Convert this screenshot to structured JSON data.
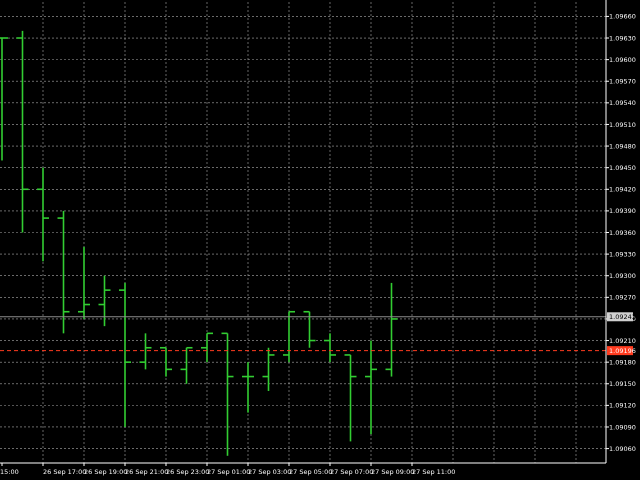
{
  "chart_data": {
    "type": "ohlc",
    "timeframe": "H1",
    "colors": {
      "background": "#000000",
      "grid": "#a9a9a9",
      "bars": "#32cd32",
      "axis": "#ffffff",
      "bid_line": "#8c8c8c",
      "bid_tag_bg": "#d0d0d0",
      "stop_line": "#ff3b1f",
      "stop_tag_bg": "#ff3b1f"
    },
    "y_range": [
      1.0904,
      1.0968
    ],
    "y_ticks": [
      "1.09660",
      "1.09630",
      "1.09600",
      "1.09570",
      "1.09540",
      "1.09510",
      "1.09480",
      "1.09450",
      "1.09420",
      "1.09390",
      "1.09360",
      "1.09330",
      "1.09300",
      "1.09270",
      "1.09240",
      "1.09210",
      "1.09180",
      "1.09150",
      "1.09120",
      "1.09090",
      "1.09060"
    ],
    "x_ticks": [
      "15:00",
      "26 Sep 17:00",
      "26 Sep 19:00",
      "26 Sep 21:00",
      "26 Sep 23:00",
      "27 Sep 01:00",
      "27 Sep 03:00",
      "27 Sep 05:00",
      "27 Sep 07:00",
      "27 Sep 09:00",
      "27 Sep 11:00"
    ],
    "bars": [
      {
        "time": "26 Sep 15:00",
        "open": 1.0963,
        "high": 1.0963,
        "low": 1.0946,
        "close": 1.0963
      },
      {
        "time": "26 Sep 16:00",
        "open": 1.0963,
        "high": 1.0964,
        "low": 1.0936,
        "close": 1.0942
      },
      {
        "time": "26 Sep 17:00",
        "open": 1.0942,
        "high": 1.0945,
        "low": 1.0932,
        "close": 1.0938
      },
      {
        "time": "26 Sep 18:00",
        "open": 1.0938,
        "high": 1.0939,
        "low": 1.0922,
        "close": 1.0925
      },
      {
        "time": "26 Sep 19:00",
        "open": 1.0925,
        "high": 1.0934,
        "low": 1.0924,
        "close": 1.0926
      },
      {
        "time": "26 Sep 20:00",
        "open": 1.0926,
        "high": 1.093,
        "low": 1.0923,
        "close": 1.0928
      },
      {
        "time": "26 Sep 21:00",
        "open": 1.0928,
        "high": 1.0929,
        "low": 1.0909,
        "close": 1.0918
      },
      {
        "time": "26 Sep 22:00",
        "open": 1.0918,
        "high": 1.0922,
        "low": 1.0917,
        "close": 1.092
      },
      {
        "time": "26 Sep 23:00",
        "open": 1.092,
        "high": 1.092,
        "low": 1.0916,
        "close": 1.0917
      },
      {
        "time": "27 Sep 00:00",
        "open": 1.0917,
        "high": 1.092,
        "low": 1.0915,
        "close": 1.092
      },
      {
        "time": "27 Sep 01:00",
        "open": 1.092,
        "high": 1.0922,
        "low": 1.0918,
        "close": 1.0922
      },
      {
        "time": "27 Sep 02:00",
        "open": 1.0922,
        "high": 1.0922,
        "low": 1.0905,
        "close": 1.0916
      },
      {
        "time": "27 Sep 03:00",
        "open": 1.0916,
        "high": 1.0918,
        "low": 1.0911,
        "close": 1.0916
      },
      {
        "time": "27 Sep 04:00",
        "open": 1.0916,
        "high": 1.092,
        "low": 1.0914,
        "close": 1.0919
      },
      {
        "time": "27 Sep 05:00",
        "open": 1.0919,
        "high": 1.0925,
        "low": 1.0918,
        "close": 1.0925
      },
      {
        "time": "27 Sep 06:00",
        "open": 1.0925,
        "high": 1.0925,
        "low": 1.092,
        "close": 1.0921
      },
      {
        "time": "27 Sep 07:00",
        "open": 1.0921,
        "high": 1.0922,
        "low": 1.0918,
        "close": 1.0919
      },
      {
        "time": "27 Sep 08:00",
        "open": 1.0919,
        "high": 1.0919,
        "low": 1.0907,
        "close": 1.0916
      },
      {
        "time": "27 Sep 09:00",
        "open": 1.0916,
        "high": 1.0921,
        "low": 1.0908,
        "close": 1.0917
      },
      {
        "time": "27 Sep 10:00",
        "open": 1.0917,
        "high": 1.0929,
        "low": 1.0916,
        "close": 1.0924
      }
    ],
    "bid_price": "1.09243",
    "stop_price": "1.09196"
  }
}
